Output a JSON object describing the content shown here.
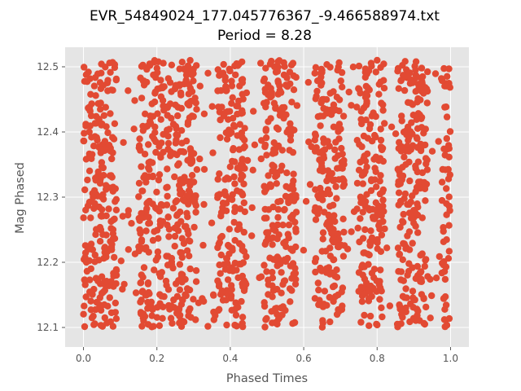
{
  "chart_data": {
    "type": "scatter",
    "title": "EVR_54849024_177.045776367_-9.466588974.txt",
    "subtitle": "Period = 8.28",
    "xlabel": "Phased Times",
    "ylabel": "Mag Phased",
    "xlim": [
      -0.05,
      1.05
    ],
    "ylim": [
      12.07,
      12.53
    ],
    "xticks": [
      0.0,
      0.2,
      0.4,
      0.6,
      0.8,
      1.0
    ],
    "xtick_labels": [
      "0.0",
      "0.2",
      "0.4",
      "0.6",
      "0.8",
      "1.0"
    ],
    "yticks": [
      12.1,
      12.2,
      12.3,
      12.4,
      12.5
    ],
    "ytick_labels": [
      "12.1",
      "12.2",
      "12.3",
      "12.4",
      "12.5"
    ],
    "grid": true,
    "style": "ggplot",
    "marker_color": "#E24A33",
    "background_color": "#E5E5E5",
    "point_density": {
      "x_range": [
        0.0,
        1.0
      ],
      "y_range": [
        12.1,
        12.51
      ],
      "dense_bands": [
        [
          0.0,
          0.09
        ],
        [
          0.15,
          0.22
        ],
        [
          0.225,
          0.31
        ],
        [
          0.365,
          0.44
        ],
        [
          0.49,
          0.58
        ],
        [
          0.63,
          0.71
        ],
        [
          0.75,
          0.82
        ],
        [
          0.855,
          0.94
        ],
        [
          0.975,
          1.0
        ]
      ]
    }
  }
}
